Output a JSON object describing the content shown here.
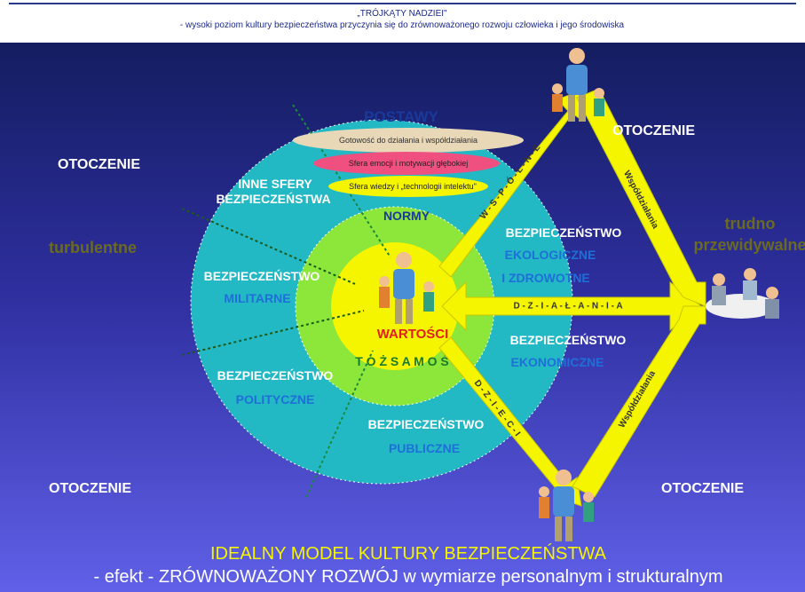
{
  "header": {
    "title": "„TRÓJKĄTY NADZIEI\"",
    "subtitle": "- wysoki  poziom  kultury  bezpieczeństwa  przyczynia  się do  zrównoważonego   rozwoju  człowieka  i jego  środowiska"
  },
  "spheres": {
    "postawy": "POSTAWY",
    "gotowosc": "Gotowość do działania i współdziałania",
    "emocje": "Sfera emocji i motywacji głębokiej",
    "wiedza": "Sfera wiedzy i „technologii intelektu\"",
    "inne_1": "INNE SFERY",
    "inne_2": "BEZPIECZEŃSTWA",
    "normy": "NORMY",
    "wartosci": "WARTOŚCI",
    "tozsamosc": "T O Ż S A M O Ś Ć"
  },
  "sectors": {
    "militarne": [
      "BEZPIECZEŃSTWO",
      "MILITARNE"
    ],
    "polityczne": [
      "BEZPIECZEŃSTWO",
      "POLITYCZNE"
    ],
    "publiczne": [
      "BEZPIECZEŃSTWO",
      "PUBLICZNE"
    ],
    "ekonomiczne": [
      "BEZPIECZEŃSTWO",
      "EKONOMICZNE"
    ],
    "ekologiczne": [
      "BEZPIECZEŃSTWO",
      "EKOLOGICZNE",
      "I ZDROWOTNE"
    ]
  },
  "environment": {
    "top_left": "OTOCZENIE",
    "top_right": "OTOCZENIE",
    "bottom_left": "OTOCZENIE",
    "bottom_right": "OTOCZENIE",
    "left": "turbulentne",
    "right_1": "trudno",
    "right_2": "przewidywalne"
  },
  "arrows": {
    "top": "W - S - P - Ó - L - N - E",
    "middle": "D - Z - I - A - Ł - A - N - I - A",
    "bottom": "D - Z - I - E - C - I",
    "right_top": "Współdziałania",
    "right_bottom": "Współdziałania"
  },
  "footer": {
    "title": "IDEALNY MODEL KULTURY BEZPIECZEŃSTWA",
    "subtitle": "- efekt - ZRÓWNOWAŻONY  ROZWÓJ  w wymiarze  personalnym i strukturalnym"
  }
}
